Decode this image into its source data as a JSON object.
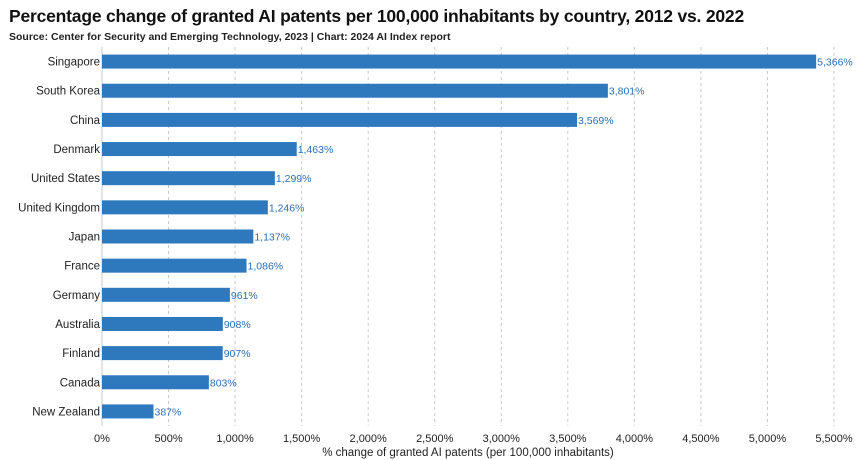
{
  "header": {
    "title": "Percentage change of granted AI patents per 100,000 inhabitants by country, 2012 vs. 2022",
    "subtitle": "Source: Center for Security and Emerging Technology, 2023 | Chart: 2024 AI Index report"
  },
  "colors": {
    "bar": "#2e78be",
    "value_label": "#2a6fb6",
    "grid": "#c8c8c8"
  },
  "chart_data": {
    "type": "bar",
    "orientation": "horizontal",
    "categories": [
      "Singapore",
      "South Korea",
      "China",
      "Denmark",
      "United States",
      "United Kingdom",
      "Japan",
      "France",
      "Germany",
      "Australia",
      "Finland",
      "Canada",
      "New Zealand"
    ],
    "values": [
      5366,
      3801,
      3569,
      1463,
      1299,
      1246,
      1137,
      1086,
      961,
      908,
      907,
      803,
      387
    ],
    "value_labels": [
      "5,366%",
      "3,801%",
      "3,569%",
      "1,463%",
      "1,299%",
      "1,246%",
      "1,137%",
      "1,086%",
      "961%",
      "908%",
      "907%",
      "803%",
      "387%"
    ],
    "xlabel": "% change of granted AI patents (per 100,000 inhabitants)",
    "ylabel": "",
    "xlim": [
      0,
      5500
    ],
    "xticks": [
      0,
      500,
      1000,
      1500,
      2000,
      2500,
      3000,
      3500,
      4000,
      4500,
      5000,
      5500
    ],
    "xtick_labels": [
      "0%",
      "500%",
      "1,000%",
      "1,500%",
      "2,000%",
      "2,500%",
      "3,000%",
      "3,500%",
      "4,000%",
      "4,500%",
      "5,000%",
      "5,500%"
    ],
    "grid": "vertical dashed"
  }
}
